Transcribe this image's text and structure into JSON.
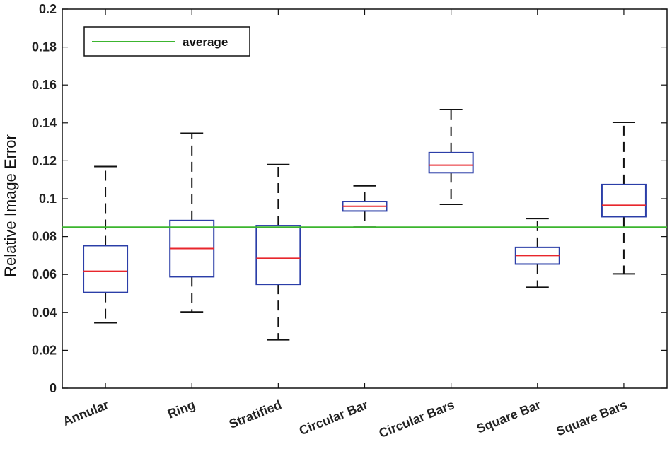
{
  "chart_data": {
    "type": "boxplot",
    "title": "",
    "xlabel": "",
    "ylabel": "Relative Image Error",
    "ylim": [
      0,
      0.2
    ],
    "yticks": [
      "0",
      "0.02",
      "0.04",
      "0.06",
      "0.08",
      "0.1",
      "0.12",
      "0.14",
      "0.16",
      "0.18",
      "0.2"
    ],
    "categories": [
      "Annular",
      "Ring",
      "Stratified",
      "Circular Bar",
      "Circular Bars",
      "Square Bar",
      "Square Bars"
    ],
    "boxes": [
      {
        "whisker_low": 0.0345,
        "q1": 0.0505,
        "median": 0.0617,
        "q3": 0.0752,
        "whisker_high": 0.117
      },
      {
        "whisker_low": 0.0402,
        "q1": 0.0588,
        "median": 0.0737,
        "q3": 0.0885,
        "whisker_high": 0.1345
      },
      {
        "whisker_low": 0.0255,
        "q1": 0.0548,
        "median": 0.0685,
        "q3": 0.0858,
        "whisker_high": 0.118
      },
      {
        "whisker_low": 0.085,
        "q1": 0.0935,
        "median": 0.096,
        "q3": 0.0985,
        "whisker_high": 0.1068
      },
      {
        "whisker_low": 0.097,
        "q1": 0.1137,
        "median": 0.1177,
        "q3": 0.1243,
        "whisker_high": 0.147
      },
      {
        "whisker_low": 0.0532,
        "q1": 0.0655,
        "median": 0.07,
        "q3": 0.0743,
        "whisker_high": 0.0895
      },
      {
        "whisker_low": 0.0603,
        "q1": 0.0905,
        "median": 0.0965,
        "q3": 0.1075,
        "whisker_high": 0.1403
      }
    ],
    "reference_line": {
      "name": "average",
      "value": 0.085,
      "color": "#3cb52f"
    },
    "legend": {
      "position": "top-left",
      "entries": [
        "average"
      ]
    },
    "colors": {
      "box": "#2b3ea8",
      "median": "#e8262c",
      "whisker": "#111111",
      "axis": "#111111"
    }
  }
}
